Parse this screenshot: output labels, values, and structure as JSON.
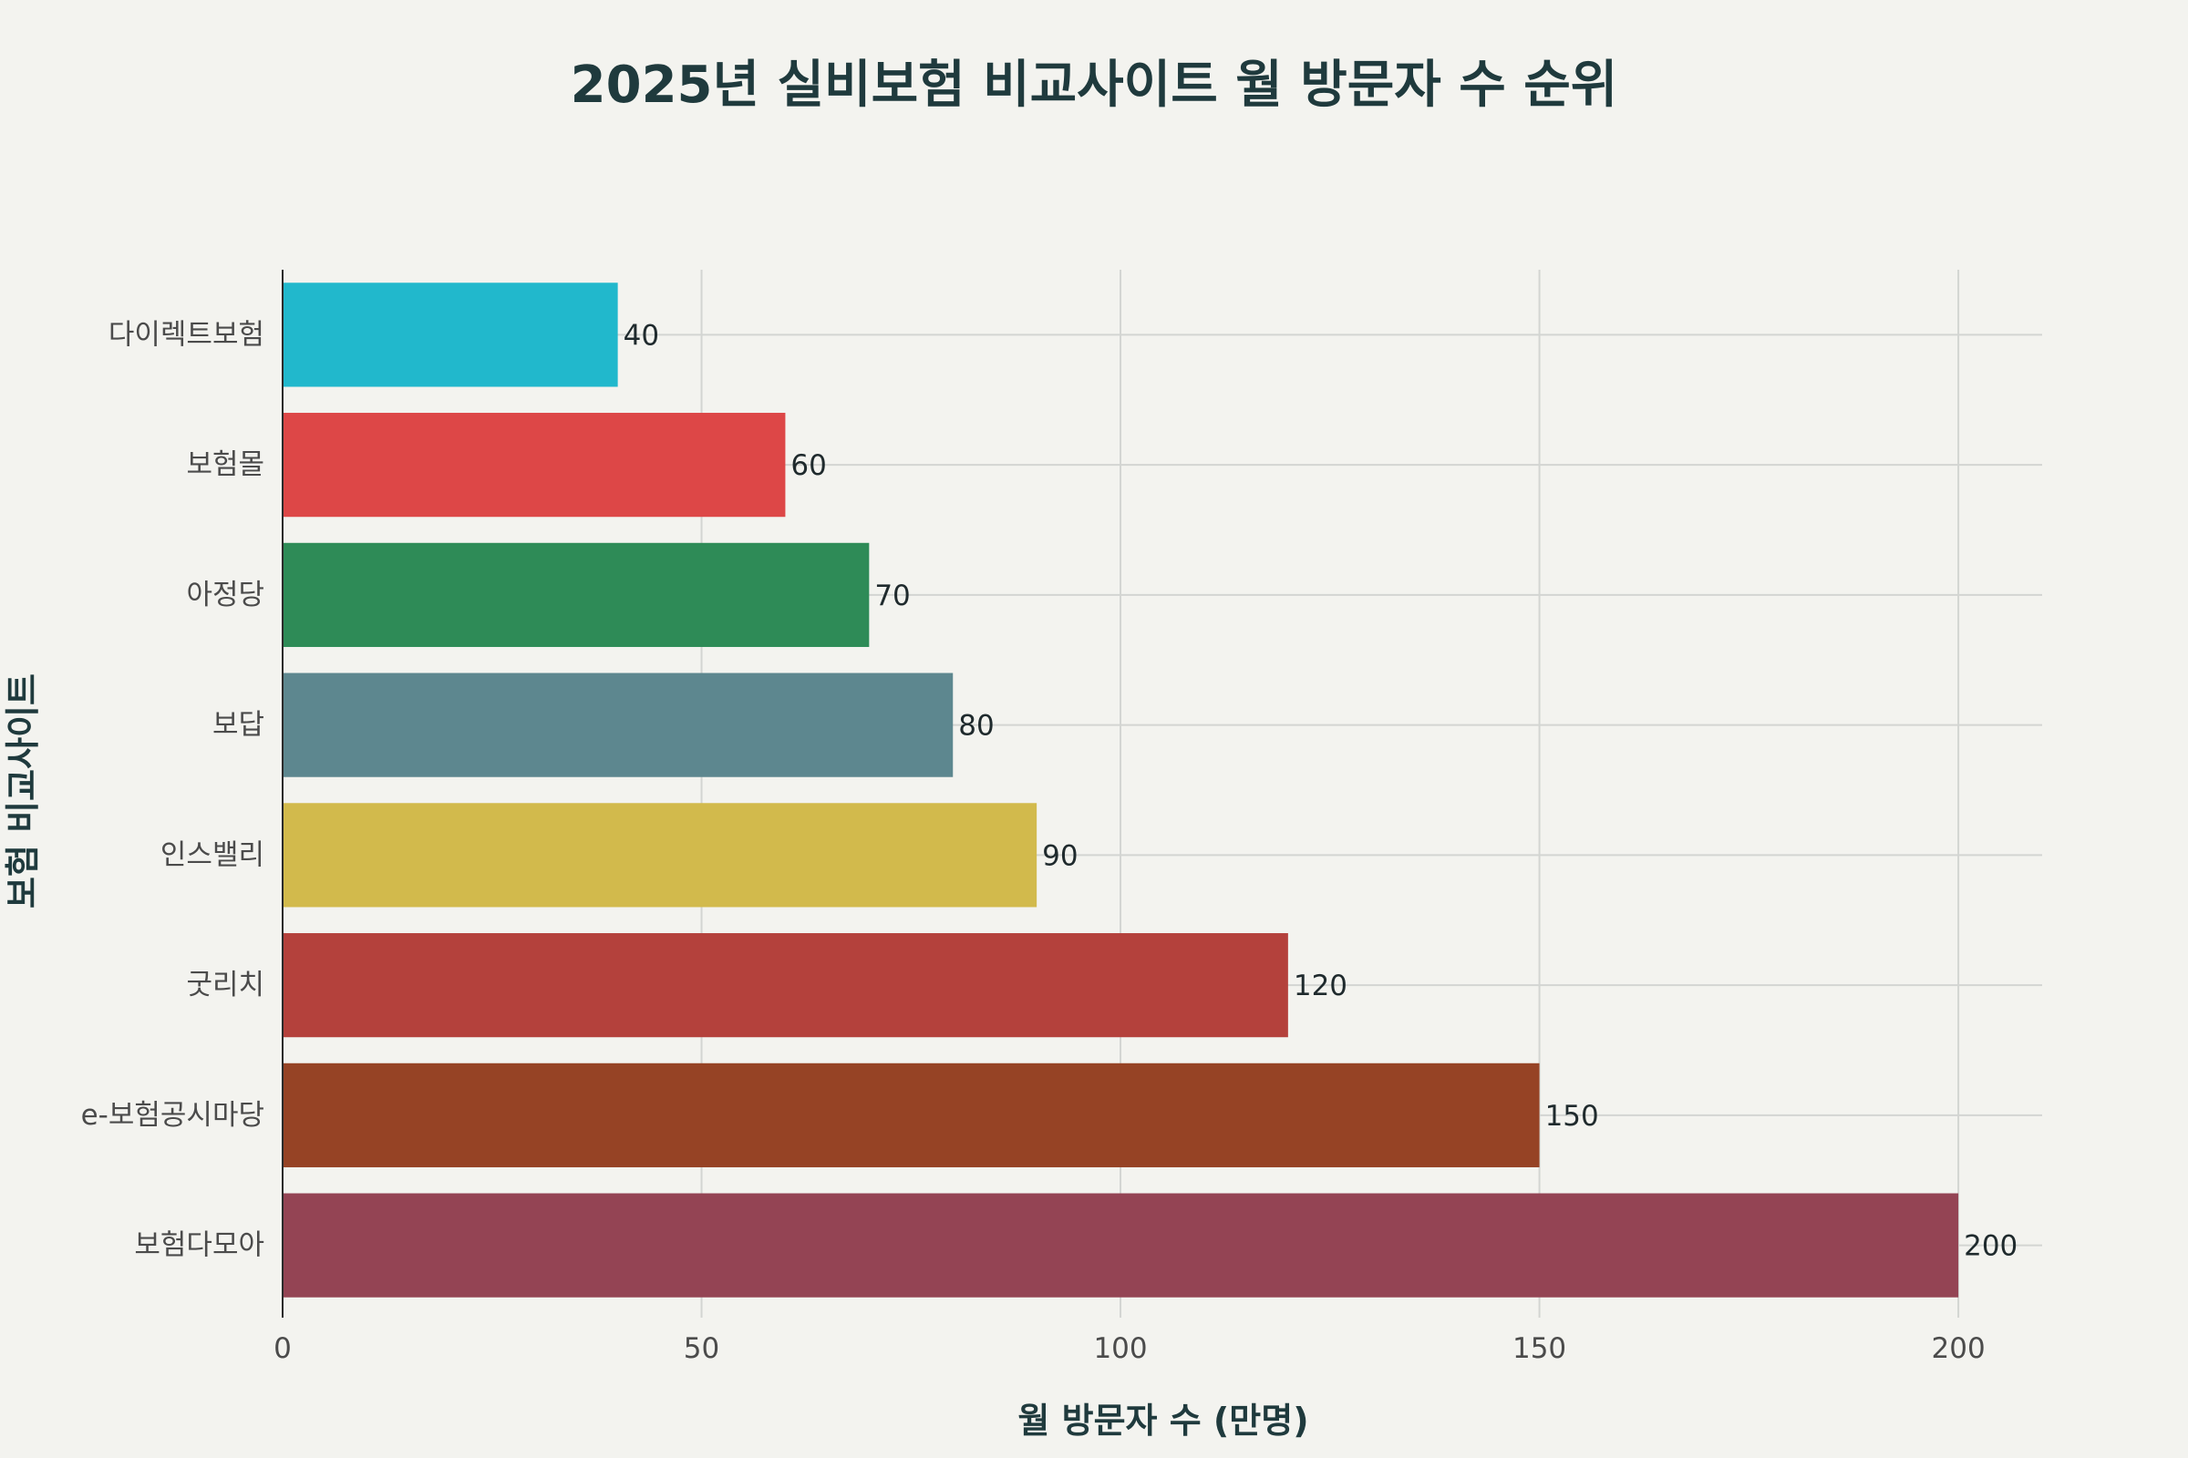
{
  "chart_data": {
    "type": "bar",
    "orientation": "horizontal",
    "title": "2025년 실비보험 비교사이트 월 방문자 수 순위",
    "xlabel": "월 방문자 수 (만명)",
    "ylabel": "보험 비교사이트",
    "xlim": [
      0,
      210
    ],
    "xticks": [
      0,
      50,
      100,
      150,
      200
    ],
    "grid": true,
    "legend": "none",
    "categories": [
      "다이렉트보험",
      "보험몰",
      "아정당",
      "보답",
      "인스밸리",
      "굿리치",
      "e-보험공시마당",
      "보험다모아"
    ],
    "values": [
      40,
      60,
      70,
      80,
      90,
      120,
      150,
      200
    ],
    "colors": [
      "#21b8cc",
      "#dd4747",
      "#2e8b57",
      "#5d878f",
      "#d2ba4c",
      "#b4413c",
      "#964325",
      "#944454"
    ]
  }
}
